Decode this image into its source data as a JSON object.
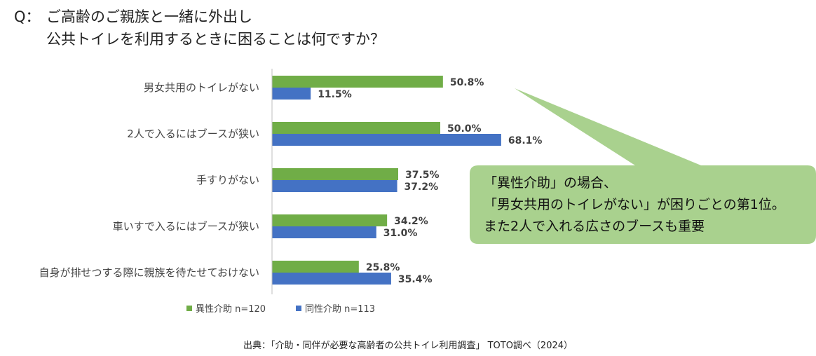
{
  "question": {
    "prefix": "Q：",
    "line1": "ご高齢のご親族と一緒に外出し",
    "line2": "公共トイレを利用するときに困ることは何ですか？"
  },
  "callout": {
    "line1": "「異性介助」の場合、",
    "line2": "「男女共用のトイレがない」が困りごとの第1位。",
    "line3": "また2人で入れる広さのブースも重要",
    "fill": "#a9d18e"
  },
  "source": "出典：「介助・同伴が必要な高齢者の公共トイレ利用調査」 TOTO調べ（2024）",
  "chart_data": {
    "type": "bar",
    "orientation": "horizontal",
    "unit": "%",
    "categories": [
      "男女共用のトイレがない",
      "2人で入るにはブースが狭い",
      "手すりがない",
      "車いすで入るにはブースが狭い",
      "自身が排せつする際に親族を待たせておけない"
    ],
    "series": [
      {
        "name": "異性介助 n=120",
        "color": "#70ad47",
        "values": [
          50.8,
          50.0,
          37.5,
          34.2,
          25.8
        ]
      },
      {
        "name": "同性介助 n=113",
        "color": "#4472c4",
        "values": [
          11.5,
          68.1,
          37.2,
          31.0,
          35.4
        ]
      }
    ],
    "xlim": [
      0,
      100
    ],
    "grid": false,
    "legend_position": "bottom-left"
  }
}
